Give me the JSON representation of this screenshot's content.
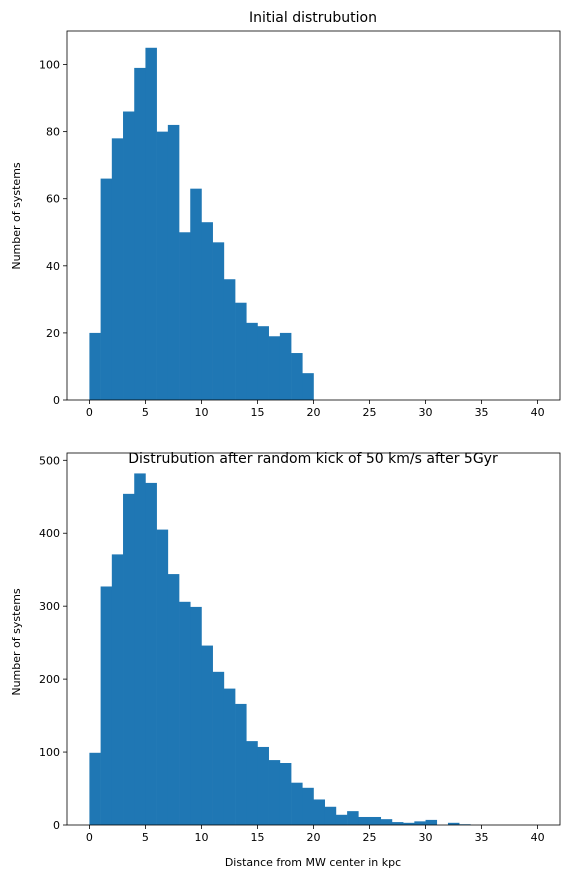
{
  "chart_data": [
    {
      "type": "bar",
      "title": "Initial distrubution",
      "xlabel": "",
      "ylabel": "Number of systems",
      "xlim": [
        -2,
        42
      ],
      "ylim": [
        0,
        110
      ],
      "xticks": [
        0,
        5,
        10,
        15,
        20,
        25,
        30,
        35,
        40
      ],
      "yticks": [
        0,
        20,
        40,
        60,
        80,
        100
      ],
      "bin_start": 0,
      "bin_width": 1,
      "values": [
        20,
        66,
        78,
        86,
        99,
        105,
        80,
        82,
        50,
        63,
        53,
        47,
        36,
        29,
        23,
        22,
        19,
        20,
        14,
        8,
        0,
        0,
        0,
        0,
        0,
        0,
        0,
        0,
        0,
        0,
        0,
        0,
        0,
        0,
        0,
        0,
        0,
        0,
        0,
        0
      ],
      "color": "#1f77b4",
      "grid": false
    },
    {
      "type": "bar",
      "title": "Distrubution after random kick of 50 km/s after 5Gyr",
      "xlabel": "Distance from MW center in kpc",
      "ylabel": "Number of systems",
      "xlim": [
        -2,
        42
      ],
      "ylim": [
        0,
        510
      ],
      "xticks": [
        0,
        5,
        10,
        15,
        20,
        25,
        30,
        35,
        40
      ],
      "yticks": [
        0,
        100,
        200,
        300,
        400,
        500
      ],
      "bin_start": 0,
      "bin_width": 1,
      "values": [
        99,
        327,
        371,
        454,
        482,
        469,
        405,
        344,
        306,
        299,
        246,
        210,
        187,
        166,
        115,
        107,
        89,
        85,
        58,
        51,
        35,
        25,
        14,
        19,
        11,
        11,
        8,
        4,
        3,
        5,
        7,
        0,
        3,
        1,
        0,
        0,
        0,
        0,
        0,
        0
      ],
      "color": "#1f77b4",
      "grid": false
    }
  ]
}
